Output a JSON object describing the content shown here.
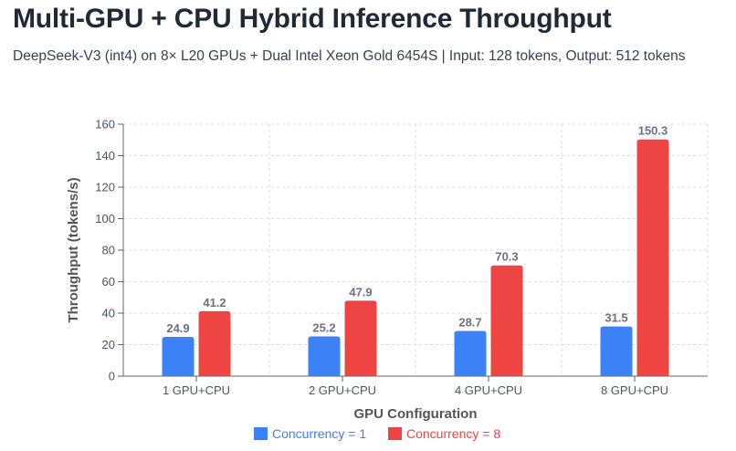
{
  "page": {
    "title": "Multi-GPU + CPU Hybrid Inference Throughput",
    "subtitle": "DeepSeek-V3 (int4) on 8× L20 GPUs + Dual Intel Xeon Gold 6454S | Input: 128 tokens, Output: 512 tokens"
  },
  "colors": {
    "series1": "#3b82f6",
    "series2": "#ef4444"
  },
  "chart_data": {
    "type": "bar",
    "title": "Multi-GPU + CPU Hybrid Inference Throughput",
    "subtitle": "DeepSeek-V3 (int4) on 8× L20 GPUs + Dual Intel Xeon Gold 6454S | Input: 128 tokens, Output: 512 tokens",
    "xlabel": "GPU Configuration",
    "ylabel": "Throughput (tokens/s)",
    "ylim": [
      0,
      160
    ],
    "yticks": [
      0,
      20,
      40,
      60,
      80,
      100,
      120,
      140,
      160
    ],
    "grid": true,
    "legend_position": "bottom-center",
    "categories": [
      "1 GPU+CPU",
      "2 GPU+CPU",
      "4 GPU+CPU",
      "8 GPU+CPU"
    ],
    "series": [
      {
        "name": "Concurrency = 1",
        "values": [
          24.9,
          25.2,
          28.7,
          31.5
        ],
        "color": "#3b82f6"
      },
      {
        "name": "Concurrency = 8",
        "values": [
          41.2,
          47.9,
          70.3,
          150.3
        ],
        "color": "#ef4444"
      }
    ]
  }
}
